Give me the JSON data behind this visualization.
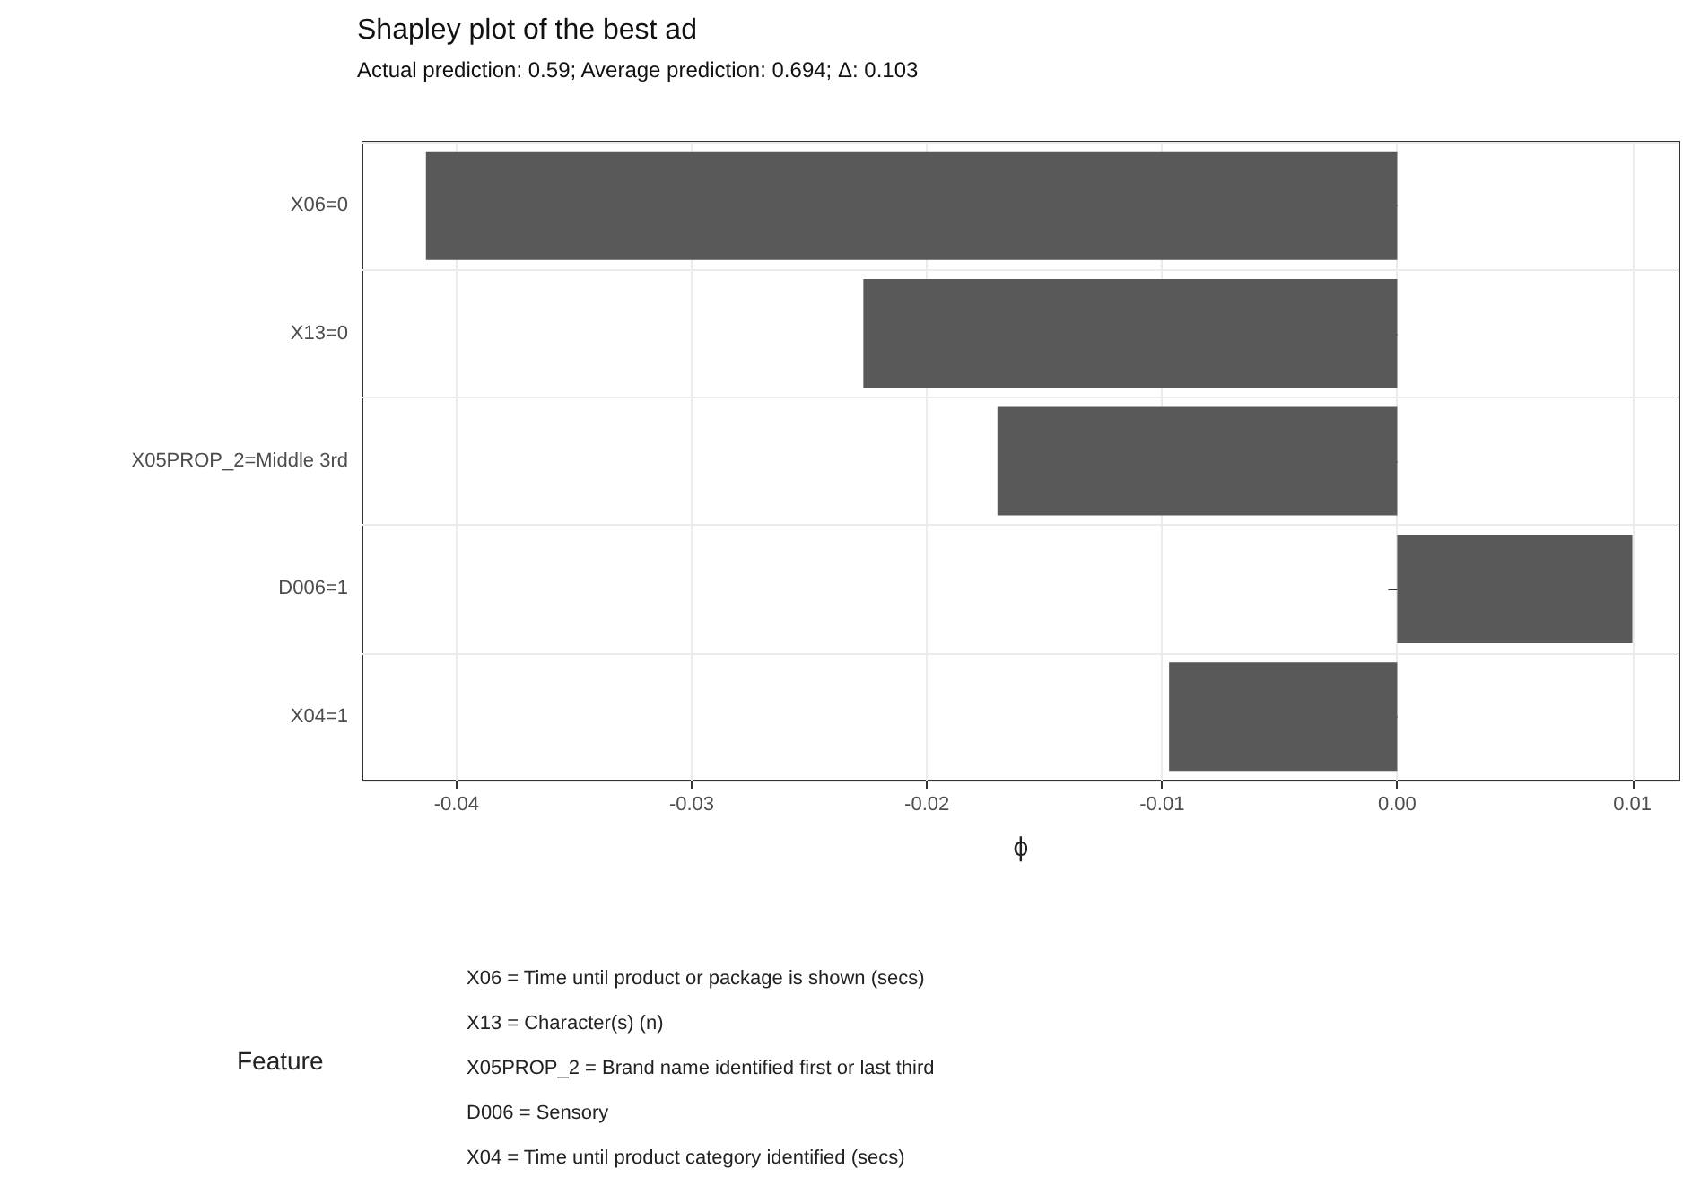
{
  "chart_data": {
    "type": "bar",
    "orientation": "horizontal",
    "title": "Shapley plot of the best ad",
    "subtitle": "Actual prediction: 0.59; Average prediction: 0.694; Δ: 0.103",
    "categories": [
      "X06=0",
      "X13=0",
      "X05PROP_2=Middle 3rd",
      "D006=1",
      "X04=1"
    ],
    "values": [
      -0.0413,
      -0.0227,
      -0.017,
      0.01,
      -0.0097
    ],
    "color": "#595959",
    "xlabel": "ϕ",
    "xlim": [
      -0.044,
      0.012
    ],
    "xticks": [
      -0.04,
      -0.03,
      -0.02,
      -0.01,
      {
        "value": 0,
        "label": "0.00"
      },
      0.01
    ],
    "grid": true,
    "legend_title": "Feature",
    "annotations": [
      "X06 = Time until product or package is shown (secs)",
      "X13 = Character(s) (n)",
      "X05PROP_2 = Brand name identified first or last third",
      "D006 = Sensory",
      "X04 = Time until product category identified (secs)"
    ]
  }
}
